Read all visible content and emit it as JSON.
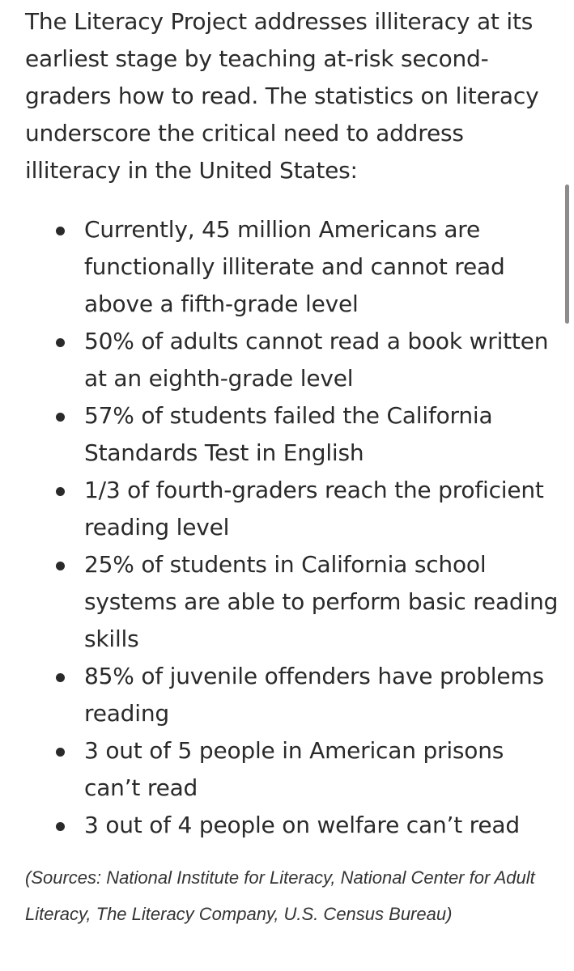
{
  "intro": "The Literacy Project addresses illiteracy at its earliest stage by teaching at-risk second-graders how to read. The statistics on literacy underscore the critical need to address illiteracy in the United States:",
  "facts": [
    "Currently, 45 million Americans are functionally illiterate and cannot read above a fifth-grade level",
    "50% of adults cannot read a book written at an eighth-grade level",
    "57% of students failed the California Standards Test in English",
    "1/3 of fourth-graders reach the proficient reading level",
    "25% of students in California school systems are able to perform basic reading skills",
    "85% of juvenile offenders have problems reading",
    "3 out of 5 people in American prisons can’t read",
    "3 out of 4 people on welfare can’t read"
  ],
  "sources": "(Sources: National Institute for Literacy, National Center for Adult Literacy, The Literacy Company, U.S. Census Bureau)"
}
